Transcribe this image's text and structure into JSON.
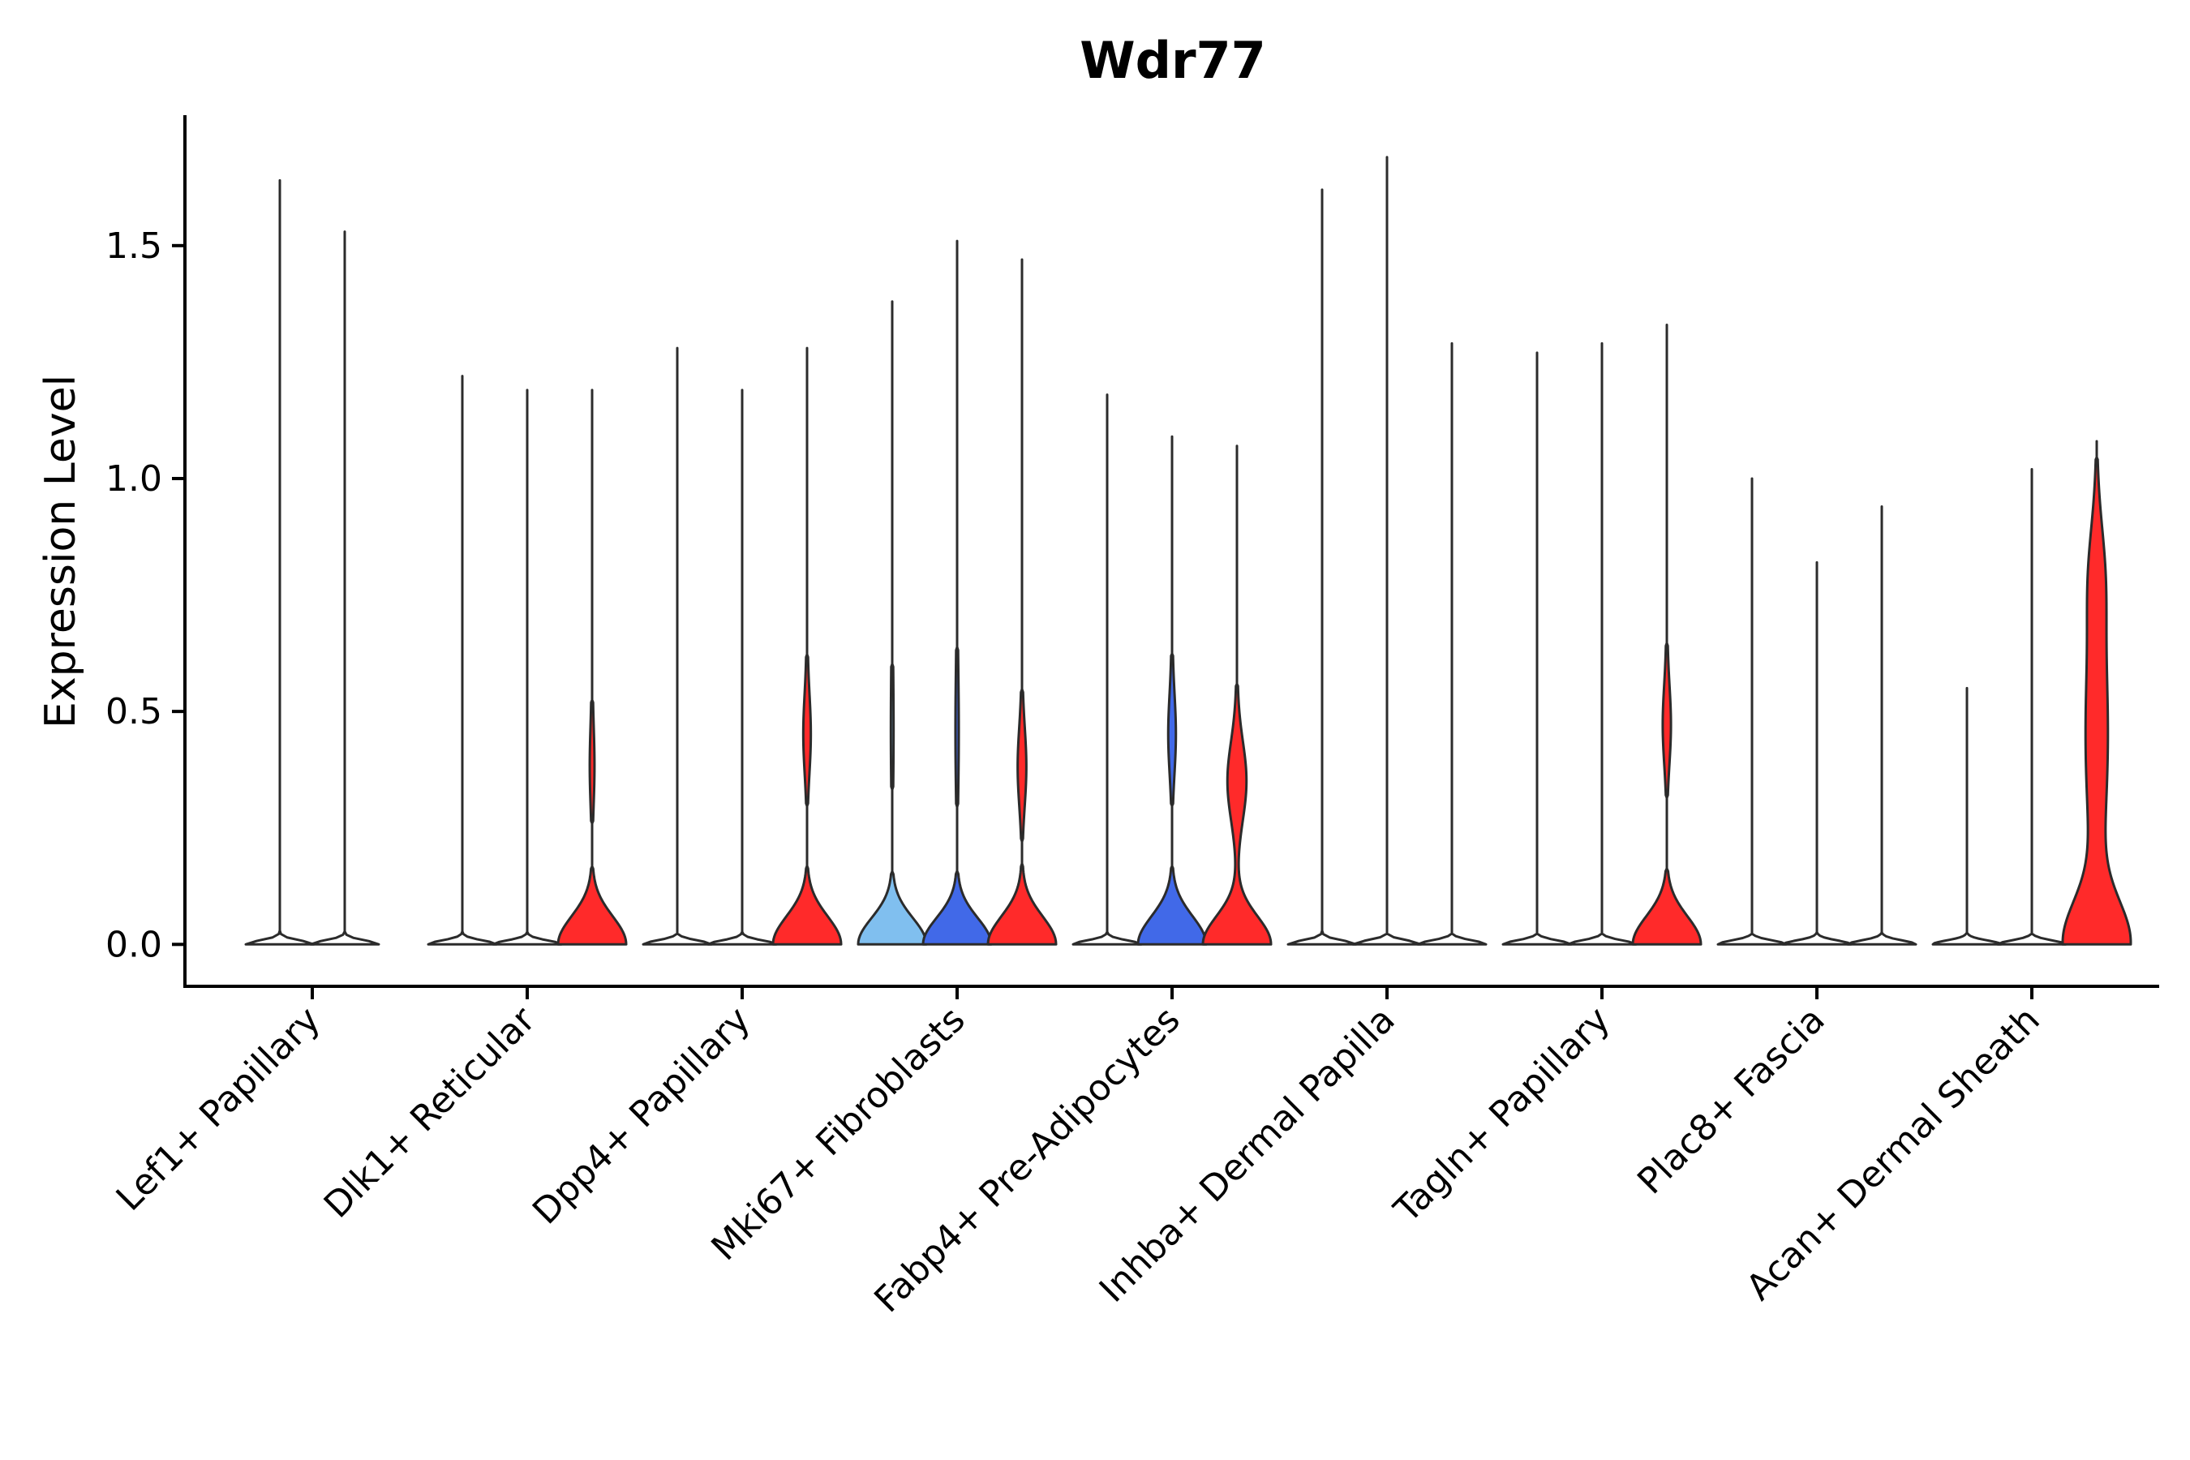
{
  "chart_data": {
    "type": "violin",
    "title": "Wdr77",
    "xlabel": "",
    "ylabel": "Expression Level",
    "ylim": [
      -0.09,
      1.78
    ],
    "yticks": [
      0.0,
      0.5,
      1.0,
      1.5
    ],
    "ytick_labels": [
      "0.0",
      "0.5",
      "1.0",
      "1.5"
    ],
    "categories": [
      "Lef1+ Papillary",
      "Dlk1+ Reticular",
      "Dpp4+ Papillary",
      "Mki67+ Fibroblasts",
      "Fabp4+ Pre-Adipocytes",
      "Inhba+ Dermal Papilla",
      "Tagln+ Papillary",
      "Plac8+ Fascia",
      "Acan+ Dermal Sheath"
    ],
    "groups": [
      {
        "category": "Lef1+ Papillary",
        "violins": [
          {
            "max": 1.64,
            "fill": "#ffffff",
            "shape": "flat"
          },
          {
            "max": 1.53,
            "fill": "#ffffff",
            "shape": "flat"
          }
        ]
      },
      {
        "category": "Dlk1+ Reticular",
        "violins": [
          {
            "max": 1.22,
            "fill": "#ffffff",
            "shape": "flat"
          },
          {
            "max": 1.19,
            "fill": "#ffffff",
            "shape": "flat"
          },
          {
            "max": 1.19,
            "fill": "#ff2a2a",
            "shape": "bimodal",
            "mode2": 0.38,
            "w2": 0.06
          }
        ]
      },
      {
        "category": "Dpp4+ Papillary",
        "violins": [
          {
            "max": 1.28,
            "fill": "#ffffff",
            "shape": "flat"
          },
          {
            "max": 1.19,
            "fill": "#ffffff",
            "shape": "flat"
          },
          {
            "max": 1.28,
            "fill": "#ff2a2a",
            "shape": "bimodal",
            "mode2": 0.45,
            "w2": 0.1
          }
        ]
      },
      {
        "category": "Mki67+ Fibroblasts",
        "violins": [
          {
            "max": 1.38,
            "fill": "#80bfef",
            "shape": "base",
            "mode2": 0.45,
            "w2": 0.03
          },
          {
            "max": 1.51,
            "fill": "#4169e8",
            "shape": "base",
            "mode2": 0.45,
            "w2": 0.04
          },
          {
            "max": 1.47,
            "fill": "#ff2a2a",
            "shape": "bimodal",
            "mode2": 0.38,
            "w2": 0.12
          }
        ]
      },
      {
        "category": "Fabp4+ Pre-Adipocytes",
        "violins": [
          {
            "max": 1.18,
            "fill": "#ffffff",
            "shape": "flat"
          },
          {
            "max": 1.09,
            "fill": "#4169e8",
            "shape": "bimodal",
            "mode2": 0.45,
            "w2": 0.1
          },
          {
            "max": 1.07,
            "fill": "#ff2a2a",
            "shape": "bimodal",
            "mode2": 0.35,
            "w2": 0.27
          }
        ]
      },
      {
        "category": "Inhba+ Dermal Papilla",
        "violins": [
          {
            "max": 1.62,
            "fill": "#ffffff",
            "shape": "flat"
          },
          {
            "max": 1.69,
            "fill": "#ffffff",
            "shape": "flat"
          },
          {
            "max": 1.29,
            "fill": "#ffffff",
            "shape": "flat"
          }
        ]
      },
      {
        "category": "Tagln+ Papillary",
        "violins": [
          {
            "max": 1.27,
            "fill": "#ffffff",
            "shape": "flat"
          },
          {
            "max": 1.29,
            "fill": "#ffffff",
            "shape": "flat"
          },
          {
            "max": 1.33,
            "fill": "#ff2a2a",
            "shape": "bimodal",
            "mode2": 0.47,
            "w2": 0.11
          }
        ]
      },
      {
        "category": "Plac8+ Fascia",
        "violins": [
          {
            "max": 1.0,
            "fill": "#ffffff",
            "shape": "flat"
          },
          {
            "max": 0.82,
            "fill": "#ffffff",
            "shape": "flat"
          },
          {
            "max": 0.94,
            "fill": "#ffffff",
            "shape": "flat"
          }
        ]
      },
      {
        "category": "Acan+ Dermal Sheath",
        "violins": [
          {
            "max": 0.55,
            "fill": "#ffffff",
            "shape": "flat"
          },
          {
            "max": 1.02,
            "fill": "#ffffff",
            "shape": "flat"
          },
          {
            "max": 1.08,
            "fill": "#ff2a2a",
            "shape": "broad"
          }
        ]
      }
    ]
  }
}
